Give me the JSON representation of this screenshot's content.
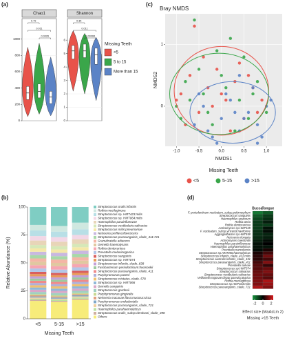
{
  "chart_data": [
    {
      "type": "violin",
      "panel": "(a)",
      "legend_title": "Missing Teeth",
      "groups": [
        "<5",
        "5 to 15",
        "More than 15"
      ],
      "colors": [
        "#e8534a",
        "#3aa64a",
        "#5b83c6"
      ],
      "facets": [
        {
          "title": "Chao1",
          "ylim": [
            0,
            1250
          ],
          "yticks": [
            0,
            200,
            400,
            600,
            800,
            1000
          ],
          "stats": [
            {
              "min": 50,
              "q1": 260,
              "median": 340,
              "q3": 420,
              "max": 900
            },
            {
              "min": 80,
              "q1": 280,
              "median": 360,
              "q3": 450,
              "max": 950
            },
            {
              "min": 60,
              "q1": 210,
              "median": 290,
              "q3": 360,
              "max": 780
            }
          ],
          "pvalues": [
            "0.79",
            "0.011",
            "0.0026"
          ]
        },
        {
          "title": "Shannon",
          "ylim": [
            0,
            7.6
          ],
          "yticks": [
            0,
            1,
            2,
            3,
            4,
            5,
            6
          ],
          "stats": [
            {
              "min": 2.2,
              "q1": 4.6,
              "median": 5.2,
              "q3": 5.6,
              "max": 6.7
            },
            {
              "min": 2.0,
              "q1": 4.7,
              "median": 5.2,
              "q3": 5.7,
              "max": 6.5
            },
            {
              "min": 1.5,
              "q1": 4.2,
              "median": 4.9,
              "q3": 5.4,
              "max": 6.2
            }
          ],
          "pvalues": [
            "0.35",
            "0.011",
            "0.00066"
          ]
        }
      ]
    },
    {
      "type": "stacked_bar",
      "panel": "(b)",
      "y_label": "Relative Abundance (%)",
      "x_label": "Missing Teeth",
      "categories": [
        "<5",
        "5-15",
        ">15"
      ],
      "ylim": [
        0,
        100
      ],
      "yticks": [
        0,
        25,
        50,
        75,
        100
      ],
      "series": [
        {
          "name": "Streptococcus oralis:infantis",
          "color": "#7fcdc3",
          "values": [
            16,
            17,
            14
          ]
        },
        {
          "name": "Rothia mucilaginosa",
          "color": "#cfe8e0",
          "values": [
            5,
            5,
            6
          ]
        },
        {
          "name": "Streptococcus sp. HMT423:mitis",
          "color": "#b8dfe6",
          "values": [
            5,
            5,
            5
          ]
        },
        {
          "name": "Streptococcus sp. HMT064:mitis",
          "color": "#f2d7e6",
          "values": [
            4,
            4,
            4
          ]
        },
        {
          "name": "Haemophilus parainfluenzae",
          "color": "#e8d5b8",
          "values": [
            4,
            4,
            4
          ]
        },
        {
          "name": "Streptococcus vestibularis:salivarius",
          "color": "#d6e8b8",
          "values": [
            3,
            3,
            3
          ]
        },
        {
          "name": "Streptococcus mitis:pneumoniae",
          "color": "#f5e8a8",
          "values": [
            3,
            3,
            3
          ]
        },
        {
          "name": "Neisseria perflava:flavescens",
          "color": "#c9b8e0",
          "values": [
            3,
            3,
            3
          ]
        },
        {
          "name": "Streptococcus parasanguinis_clade_411:721",
          "color": "#a8d8a8",
          "values": [
            3,
            3,
            3
          ]
        },
        {
          "name": "Granulicatella adiacens",
          "color": "#f4b6a6",
          "values": [
            3,
            3,
            3
          ]
        },
        {
          "name": "Gemella haemolysans",
          "color": "#e0c8a0",
          "values": [
            3,
            3,
            3
          ]
        },
        {
          "name": "Rothia dentocariosa",
          "color": "#f6a6b2",
          "values": [
            3,
            3,
            3
          ]
        },
        {
          "name": "Prevotella melaninogenica",
          "color": "#b3c6e8",
          "values": [
            3,
            3,
            3
          ]
        },
        {
          "name": "Streptococcus sanguinis",
          "color": "#d95f5f",
          "values": [
            2,
            2,
            2
          ]
        },
        {
          "name": "Streptococcus sp. HMT074",
          "color": "#e89a5a",
          "values": [
            2,
            2,
            2
          ]
        },
        {
          "name": "Streptococcus infantis_clade_638",
          "color": "#c4a0d8",
          "values": [
            2,
            2,
            2
          ]
        },
        {
          "name": "Fusobacterium periodonticum:hwasookii",
          "color": "#9ec9a0",
          "values": [
            2,
            2,
            2
          ]
        },
        {
          "name": "Streptococcus parasanguinis_clade_411",
          "color": "#ef8a8a",
          "values": [
            2,
            2,
            2
          ]
        },
        {
          "name": "Porphyromonas pasteri",
          "color": "#b0b0d8",
          "values": [
            2,
            2,
            2
          ]
        },
        {
          "name": "Streptococcus cristatus_clade_578",
          "color": "#f0c070",
          "values": [
            2,
            2,
            2
          ]
        },
        {
          "name": "Streptococcus sp. HMT066",
          "color": "#90b8d8",
          "values": [
            2,
            2,
            2
          ]
        },
        {
          "name": "Gemella sanguinis",
          "color": "#d8a8c8",
          "values": [
            2,
            2,
            2
          ]
        },
        {
          "name": "Streptococcus gordonii",
          "color": "#a0d0c0",
          "values": [
            2,
            2,
            2
          ]
        },
        {
          "name": "Porphyromonas gingivalis",
          "color": "#c8d890",
          "values": [
            1,
            1,
            1
          ]
        },
        {
          "name": "Neisseria macacae:flava:mucosa:sicca",
          "color": "#e0a080",
          "values": [
            1,
            1,
            1
          ]
        },
        {
          "name": "Porphyromonas endodontalis",
          "color": "#80a8c8",
          "values": [
            1,
            1,
            1
          ]
        },
        {
          "name": "Streptococcus parasanguinis_clade_721",
          "color": "#f0d0a0",
          "values": [
            1,
            1,
            1
          ]
        },
        {
          "name": "Haemophilus parahaemolyticus",
          "color": "#b8e0a0",
          "values": [
            1,
            1,
            1
          ]
        },
        {
          "name": "Streptococcus oralis_subsp.dentisani_clade_398",
          "color": "#d0b0a0",
          "values": [
            1,
            1,
            1
          ]
        },
        {
          "name": "Others",
          "color": "#f7ec7a",
          "values": [
            16,
            15,
            17
          ]
        }
      ]
    },
    {
      "type": "scatter",
      "panel": "(c)",
      "title": "Bray NMDS",
      "x_label": "NMDS1",
      "y_label": "NMDS2",
      "legend_title": "Missing Teeth",
      "grid": true,
      "xlim": [
        -1.25,
        1.35
      ],
      "ylim": [
        -0.65,
        1.5
      ],
      "xticks": [
        {
          "value": -1,
          "label": "-1.0"
        },
        -0.5,
        {
          "value": 0,
          "label": "0.0"
        },
        0.5,
        {
          "value": 1,
          "label": "1.0"
        }
      ],
      "yticks": [
        0,
        1
      ],
      "series": [
        {
          "name": "<5",
          "color": "#e8534a",
          "x": [
            -0.9,
            -0.7,
            -0.5,
            -0.3,
            -0.1,
            0.1,
            0.3,
            0.5,
            0.7,
            0.9,
            -0.8,
            -0.4,
            0,
            0.4,
            0.8,
            -0.6,
            -0.2,
            0.2,
            0.6,
            -1.0
          ],
          "y": [
            0.2,
            0.5,
            -0.1,
            0.3,
            0.6,
            0.1,
            0.4,
            -0.2,
            0.3,
            0.1,
            -0.3,
            0.8,
            0.2,
            0.7,
            -0.1,
            1.3,
            0,
            -0.4,
            0.5,
            0.1
          ],
          "ellipse": {
            "cx": 0,
            "cy": 0.25,
            "rx": 1.05,
            "ry": 0.72
          }
        },
        {
          "name": "5-15",
          "color": "#3aa64a",
          "x": [
            -1.0,
            -0.8,
            -0.6,
            -0.4,
            -0.2,
            0,
            0.2,
            0.4,
            0.6,
            0.8,
            -0.9,
            -0.5,
            -0.1,
            0.3,
            0.7,
            -0.7,
            -0.3,
            0.1,
            0.5,
            1.0
          ],
          "y": [
            0,
            0.4,
            1.4,
            0.2,
            -0.3,
            0.5,
            1.1,
            0.1,
            -0.2,
            0.4,
            -0.2,
            0.6,
            0.9,
            -0.4,
            0.2,
            0.1,
            -0.1,
            0.3,
            0.8,
            -0.1
          ],
          "ellipse": {
            "cx": -0.05,
            "cy": 0.2,
            "rx": 1.1,
            "ry": 0.66
          }
        },
        {
          "name": ">15",
          "color": "#5b83c6",
          "x": [
            -0.6,
            -0.4,
            -0.2,
            0,
            0.2,
            0.4,
            0.6,
            0.8,
            1.0,
            -0.5,
            -0.1,
            0.3,
            0.7,
            0.9,
            0.1,
            0.5,
            -0.3,
            1.1,
            0.4,
            0.8
          ],
          "y": [
            -0.3,
            0,
            -0.5,
            -0.2,
            0.1,
            -0.4,
            -0.1,
            -0.3,
            0,
            0.2,
            -0.6,
            -0.1,
            0.3,
            -0.5,
            0.2,
            -0.2,
            -0.4,
            0.1,
            0.5,
            -0.6
          ],
          "ellipse": {
            "cx": 0.25,
            "cy": -0.1,
            "rx": 0.95,
            "ry": 0.5
          }
        }
      ]
    },
    {
      "type": "heatmap",
      "panel": "(d)",
      "columns": [
        "Buccal",
        "Tongue"
      ],
      "rows": [
        "F. periodonticum nucleatum_subsp.polymorphum",
        "Streptococcus sanguinis",
        "Haemophilus sputorum",
        "Rothia aeria",
        "Rothia dentocariosa",
        "Actinomyces sp.HMT169",
        "F. nucleatum_subsp.vincentii:naviforme",
        "Aggregatibacter sp.HMT458",
        "Neisseria elongata",
        "Actinomyces naeslundii",
        "Haemophilus parainfluenzae",
        "Haemophilus parahaemolyticus",
        "Prevotella nanceiensis",
        "Streptococcus sp.HMT056:haemolyticus",
        "Streptococcus infantis_clade_431:mitis",
        "Streptococcus australis:infantis_clade_431",
        "Streptococcus parasanguinis_clade_411",
        "Prevotella salivae",
        "Streptococcus sp.HMT074",
        "Streptococcus salivarius",
        "Streptococcus vestibularis:salivarius",
        "Veillonella rogosae:dispar:parvula:atypica",
        "Rothia mucilaginosa",
        "Streptococcus sp.HMT423:mitis",
        "Streptococcus parasanguinis_clade_721"
      ],
      "values": [
        [
          -2,
          -1.5
        ],
        [
          -1.5,
          -1
        ],
        [
          -1.2,
          -0.8
        ],
        [
          -1,
          -0.5
        ],
        [
          -1,
          -1
        ],
        [
          -1,
          -0.3
        ],
        [
          -0.8,
          -0.2
        ],
        [
          -0.8,
          -0.6
        ],
        [
          -0.7,
          -0.5
        ],
        [
          -0.5,
          -0.2
        ],
        [
          -0.3,
          0
        ],
        [
          -0.3,
          -0.3
        ],
        [
          -0.2,
          0.3
        ],
        [
          0.3,
          0.8
        ],
        [
          0.5,
          1.3
        ],
        [
          0.5,
          0.8
        ],
        [
          0.8,
          1.5
        ],
        [
          1,
          0.6
        ],
        [
          1,
          1.2
        ],
        [
          1.2,
          1.5
        ],
        [
          1.3,
          1.2
        ],
        [
          1.3,
          1
        ],
        [
          1.5,
          2
        ],
        [
          1.5,
          1.8
        ],
        [
          2,
          1.5
        ]
      ],
      "colorscale": [
        "#1a9641",
        "#000000",
        "#d7191c"
      ],
      "clim": [
        -2.5,
        2.5
      ],
      "colorbar_ticks": [
        -2,
        0,
        2
      ],
      "colorbar_title": "Effect size (MaAsLin 2)",
      "subtitle": "Missing >15 Teeth"
    }
  ]
}
